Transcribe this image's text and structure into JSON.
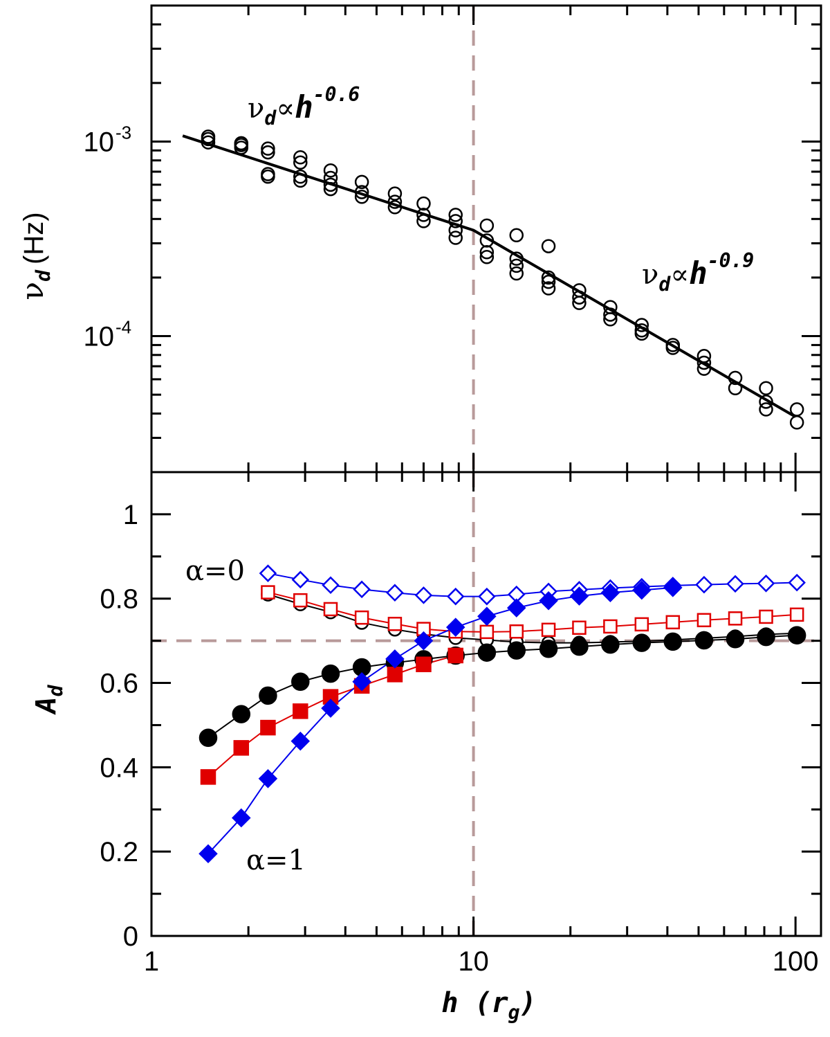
{
  "chart_data": [
    {
      "type": "scatter",
      "panel": "top",
      "xscale": "log",
      "yscale": "log",
      "xlim": [
        1,
        120
      ],
      "ylim": [
        2e-05,
        0.005
      ],
      "ylabel": "ν_d (Hz)",
      "ylabel_parts": {
        "symbol": "ν",
        "subscript": "d",
        "unit": "(Hz)"
      },
      "yticks": [
        {
          "value": 0.001,
          "base": "10",
          "exp": "-3"
        },
        {
          "value": 0.0001,
          "base": "10",
          "exp": "-4"
        }
      ],
      "points": {
        "h": [
          1.5,
          1.5,
          1.5,
          1.9,
          1.9,
          1.9,
          2.3,
          2.3,
          2.3,
          2.3,
          2.9,
          2.9,
          2.9,
          2.9,
          3.6,
          3.6,
          3.6,
          3.6,
          4.5,
          4.5,
          4.5,
          5.7,
          5.7,
          5.7,
          7.0,
          7.0,
          7.0,
          8.8,
          8.8,
          8.8,
          8.8,
          11.0,
          11.0,
          11.0,
          11.0,
          13.6,
          13.6,
          13.6,
          13.6,
          17.1,
          17.1,
          17.1,
          17.1,
          21.3,
          21.3,
          21.3,
          26.6,
          26.6,
          26.6,
          33.3,
          33.3,
          33.3,
          41.6,
          41.6,
          52,
          52,
          52,
          65,
          65,
          81,
          81,
          81,
          101,
          101
        ],
        "nu": [
          0.00106,
          0.00103,
          0.00099,
          0.00098,
          0.00096,
          0.00093,
          0.00092,
          0.00088,
          0.00068,
          0.00066,
          0.00083,
          0.00078,
          0.00066,
          0.00063,
          0.00071,
          0.00065,
          0.0006,
          0.00057,
          0.00062,
          0.00055,
          0.00052,
          0.00054,
          0.00049,
          0.00046,
          0.00048,
          0.00042,
          0.00039,
          0.00042,
          0.00039,
          0.00035,
          0.00032,
          0.00037,
          0.00031,
          0.00027,
          0.000255,
          0.00033,
          0.00025,
          0.00023,
          0.00021,
          0.00029,
          0.0002,
          0.00019,
          0.000176,
          0.000172,
          0.000158,
          0.000148,
          0.000141,
          0.000129,
          0.000122,
          0.000114,
          0.000107,
          0.000103,
          9e-05,
          8.7e-05,
          7.9e-05,
          7.3e-05,
          6.8e-05,
          6.1e-05,
          5.4e-05,
          5.4e-05,
          4.6e-05,
          4.2e-05,
          4.2e-05,
          3.6e-05
        ]
      },
      "fit_line": {
        "h": [
          1.25,
          10,
          100
        ],
        "nu": [
          0.00107,
          0.00035,
          3.85e-05
        ]
      },
      "annotations": [
        {
          "text": "ν_d∝h^-0.6",
          "parts": {
            "nu": "ν",
            "sub": "d",
            "prop": "∝",
            "h": "h",
            "exp": "-0.6"
          }
        },
        {
          "text": "ν_d∝h^-0.9",
          "parts": {
            "nu": "ν",
            "sub": "d",
            "prop": "∝",
            "h": "h",
            "exp": "-0.9"
          }
        }
      ],
      "reference_lines": {
        "vertical_x": 10
      }
    },
    {
      "type": "line",
      "panel": "bottom",
      "xscale": "log",
      "xlim": [
        1,
        120
      ],
      "ylim": [
        0,
        1.1
      ],
      "xlabel": "h (r_g)",
      "xlabel_parts": {
        "h": "h",
        "open": "(",
        "r": "r",
        "sub": "g",
        "close": ")"
      },
      "ylabel": "A_d",
      "ylabel_parts": {
        "symbol": "A",
        "subscript": "d"
      },
      "xticks": [
        {
          "value": 1,
          "label": "1"
        },
        {
          "value": 10,
          "label": "10"
        },
        {
          "value": 100,
          "label": "100"
        }
      ],
      "yticks": [
        {
          "value": 0,
          "label": "0"
        },
        {
          "value": 0.2,
          "label": "0.2"
        },
        {
          "value": 0.4,
          "label": "0.4"
        },
        {
          "value": 0.6,
          "label": "0.6"
        },
        {
          "value": 0.8,
          "label": "0.8"
        },
        {
          "value": 1,
          "label": "1"
        }
      ],
      "reference_lines": {
        "vertical_x": 10,
        "horizontal_y": 0.7
      },
      "annotations": [
        {
          "text": "α=0",
          "at_series": "open"
        },
        {
          "text": "α=1",
          "at_series": "filled"
        }
      ],
      "series": [
        {
          "name": "black open circles (α=0)",
          "marker": "circle",
          "filled": false,
          "color": "#000000",
          "x": [
            2.3,
            2.9,
            3.6,
            4.5,
            5.7,
            7.0,
            8.8,
            11.0,
            13.6,
            17.1,
            21.3,
            26.6,
            33.3,
            41.6,
            52,
            65,
            81,
            101
          ],
          "y": [
            0.81,
            0.787,
            0.768,
            0.743,
            0.727,
            0.716,
            0.707,
            0.702,
            0.697,
            0.695,
            0.695,
            0.697,
            0.699,
            0.702,
            0.706,
            0.71,
            0.715,
            0.718
          ]
        },
        {
          "name": "red open squares (α=0)",
          "marker": "square",
          "filled": false,
          "color": "#e00000",
          "x": [
            2.3,
            2.9,
            3.6,
            4.5,
            5.7,
            7.0,
            8.8,
            11.0,
            13.6,
            17.1,
            21.3,
            26.6,
            33.3,
            41.6,
            52,
            65,
            81,
            101
          ],
          "y": [
            0.815,
            0.796,
            0.775,
            0.755,
            0.74,
            0.728,
            0.722,
            0.721,
            0.722,
            0.726,
            0.731,
            0.734,
            0.739,
            0.744,
            0.749,
            0.753,
            0.757,
            0.762
          ]
        },
        {
          "name": "blue open diamonds (α=0)",
          "marker": "diamond",
          "filled": false,
          "color": "#0000ee",
          "x": [
            2.3,
            2.9,
            3.6,
            4.5,
            5.7,
            7.0,
            8.8,
            11.0,
            13.6,
            17.1,
            21.3,
            26.6,
            33.3,
            41.6,
            52,
            65,
            81,
            101
          ],
          "y": [
            0.86,
            0.845,
            0.832,
            0.822,
            0.814,
            0.808,
            0.805,
            0.805,
            0.81,
            0.817,
            0.821,
            0.825,
            0.828,
            0.831,
            0.833,
            0.835,
            0.836,
            0.838
          ]
        },
        {
          "name": "black filled circles (α=1)",
          "marker": "circle",
          "filled": true,
          "color": "#000000",
          "x": [
            1.5,
            1.9,
            2.3,
            2.9,
            3.6,
            4.5,
            5.7,
            7.0,
            8.8,
            11.0,
            13.6,
            17.1,
            21.3,
            26.6,
            33.3,
            41.6,
            52,
            65,
            81,
            101
          ],
          "y": [
            0.47,
            0.526,
            0.57,
            0.603,
            0.622,
            0.637,
            0.648,
            0.656,
            0.665,
            0.672,
            0.677,
            0.681,
            0.686,
            0.691,
            0.695,
            0.698,
            0.701,
            0.704,
            0.709,
            0.713
          ]
        },
        {
          "name": "red filled squares (α=1)",
          "marker": "square",
          "filled": true,
          "color": "#e00000",
          "x": [
            1.5,
            1.9,
            2.3,
            2.9,
            3.6,
            4.5,
            5.7,
            7.0,
            8.8
          ],
          "y": [
            0.377,
            0.446,
            0.494,
            0.533,
            0.567,
            0.593,
            0.62,
            0.644,
            0.665
          ]
        },
        {
          "name": "blue filled diamonds (α=1)",
          "marker": "diamond",
          "filled": true,
          "color": "#0000ee",
          "x": [
            1.5,
            1.9,
            2.3,
            2.9,
            3.6,
            4.5,
            5.7,
            7.0,
            8.8,
            11.0,
            13.6,
            17.1,
            21.3,
            26.6,
            33.3,
            41.6
          ],
          "y": [
            0.195,
            0.28,
            0.373,
            0.462,
            0.54,
            0.603,
            0.657,
            0.7,
            0.732,
            0.758,
            0.778,
            0.795,
            0.806,
            0.814,
            0.82,
            0.826
          ]
        }
      ]
    }
  ]
}
